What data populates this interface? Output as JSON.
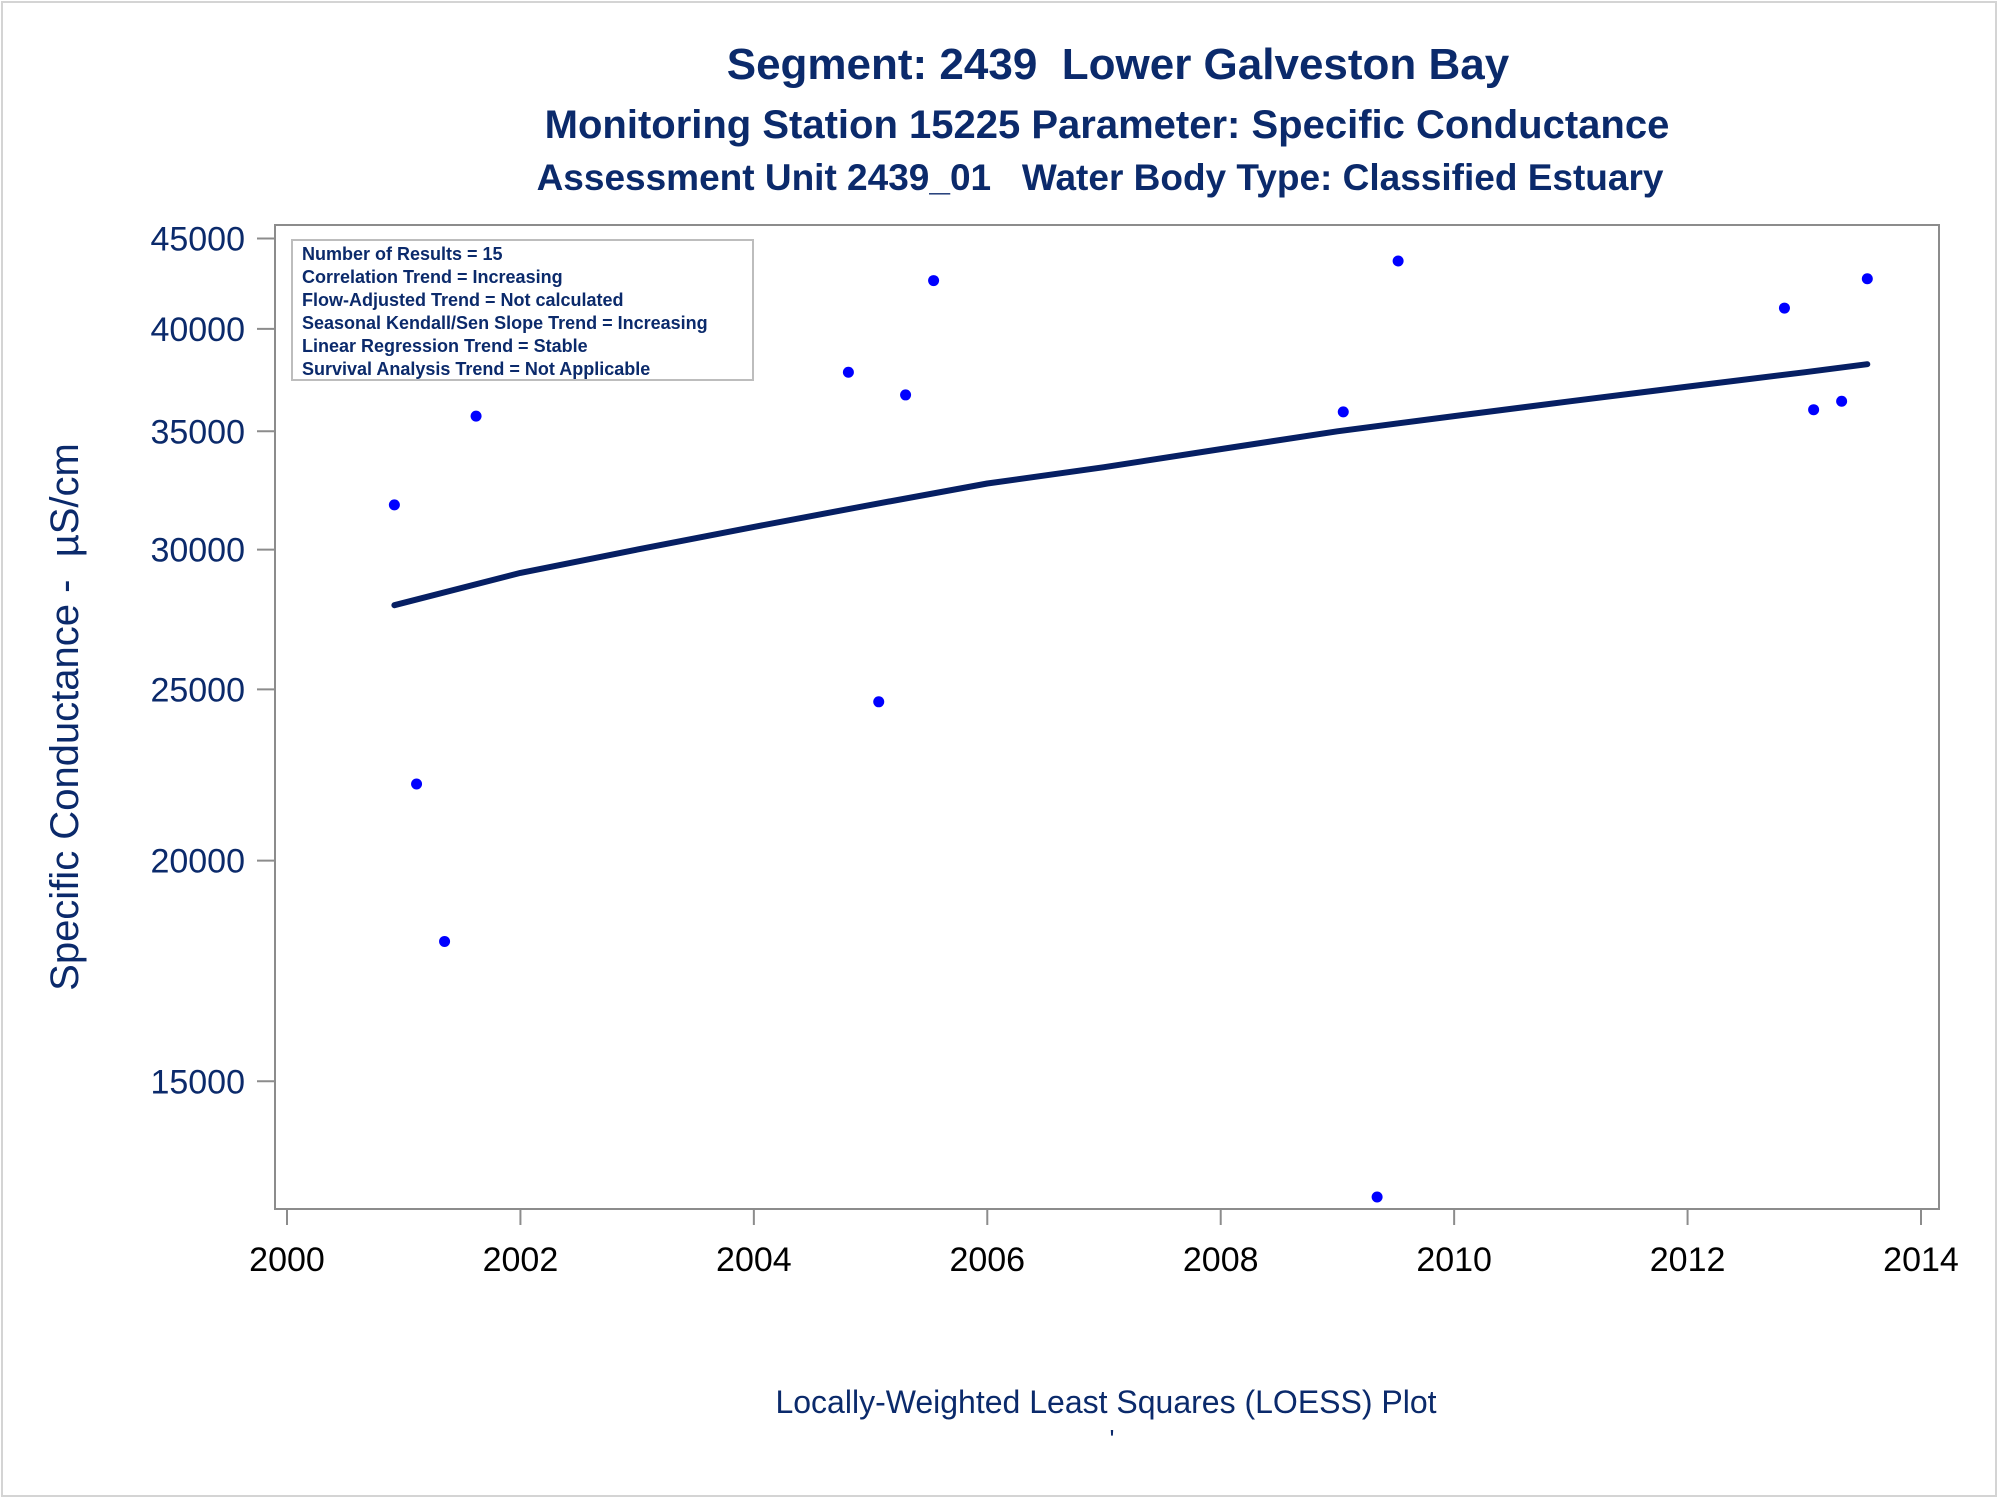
{
  "chart_data": {
    "type": "scatter",
    "title": "Segment: 2439  Lower Galveston Bay",
    "subtitle": "Monitoring Station 15225 Parameter: Specific Conductance",
    "subtitle2": "Assessment Unit 2439_01   Water Body Type: Classified Estuary",
    "ylabel": "Specific Conductance -  µS/cm",
    "xlabel": "Locally-Weighted Least Squares (LOESS) Plot",
    "footnote": "'",
    "yscale": "log",
    "xlim": [
      2000,
      2014
    ],
    "ylim": [
      12700,
      45800
    ],
    "x_ticks": [
      {
        "value": 2000,
        "label": "2000"
      },
      {
        "value": 2002,
        "label": "2002"
      },
      {
        "value": 2004,
        "label": "2004"
      },
      {
        "value": 2006,
        "label": "2006"
      },
      {
        "value": 2008,
        "label": "2008"
      },
      {
        "value": 2010,
        "label": "2010"
      },
      {
        "value": 2012,
        "label": "2012"
      },
      {
        "value": 2014,
        "label": "2014"
      }
    ],
    "y_ticks": [
      {
        "value": 15000,
        "label": "15000"
      },
      {
        "value": 20000,
        "label": "20000"
      },
      {
        "value": 25000,
        "label": "25000"
      },
      {
        "value": 30000,
        "label": "30000"
      },
      {
        "value": 35000,
        "label": "35000"
      },
      {
        "value": 40000,
        "label": "40000"
      },
      {
        "value": 45000,
        "label": "45000"
      }
    ],
    "legend_box": {
      "placement": "top-left",
      "lines": [
        "Number of Results = 15",
        "Correlation Trend = Increasing",
        "Flow-Adjusted Trend = Not calculated",
        "Seasonal Kendall/Sen Slope Trend = Increasing",
        "Linear Regression Trend = Stable",
        "Survival Analysis Trend = Not Applicable"
      ]
    },
    "points": [
      {
        "x": 2000.92,
        "y": 31800
      },
      {
        "x": 2001.11,
        "y": 22100
      },
      {
        "x": 2001.35,
        "y": 18000
      },
      {
        "x": 2001.62,
        "y": 35700
      },
      {
        "x": 2004.81,
        "y": 37800
      },
      {
        "x": 2005.07,
        "y": 24600
      },
      {
        "x": 2005.3,
        "y": 36700
      },
      {
        "x": 2005.54,
        "y": 42600
      },
      {
        "x": 2009.05,
        "y": 35900
      },
      {
        "x": 2009.34,
        "y": 12900
      },
      {
        "x": 2009.52,
        "y": 43700
      },
      {
        "x": 2012.83,
        "y": 41100
      },
      {
        "x": 2013.08,
        "y": 36000
      },
      {
        "x": 2013.32,
        "y": 36400
      },
      {
        "x": 2013.54,
        "y": 42700
      }
    ],
    "loess_line": [
      {
        "x": 2000.92,
        "y": 27900
      },
      {
        "x": 2002.0,
        "y": 29100
      },
      {
        "x": 2003.0,
        "y": 30000
      },
      {
        "x": 2004.0,
        "y": 30900
      },
      {
        "x": 2005.0,
        "y": 31800
      },
      {
        "x": 2006.0,
        "y": 32700
      },
      {
        "x": 2007.0,
        "y": 33400
      },
      {
        "x": 2008.0,
        "y": 34200
      },
      {
        "x": 2009.0,
        "y": 35000
      },
      {
        "x": 2010.0,
        "y": 35700
      },
      {
        "x": 2011.0,
        "y": 36400
      },
      {
        "x": 2012.0,
        "y": 37100
      },
      {
        "x": 2013.0,
        "y": 37800
      },
      {
        "x": 2013.54,
        "y": 38200
      }
    ],
    "colors": {
      "text": "#0b2a6b",
      "points": "#0000ff",
      "line": "#061f63",
      "axis": "#8c8c8c",
      "box_border": "#bdbdbd"
    }
  }
}
